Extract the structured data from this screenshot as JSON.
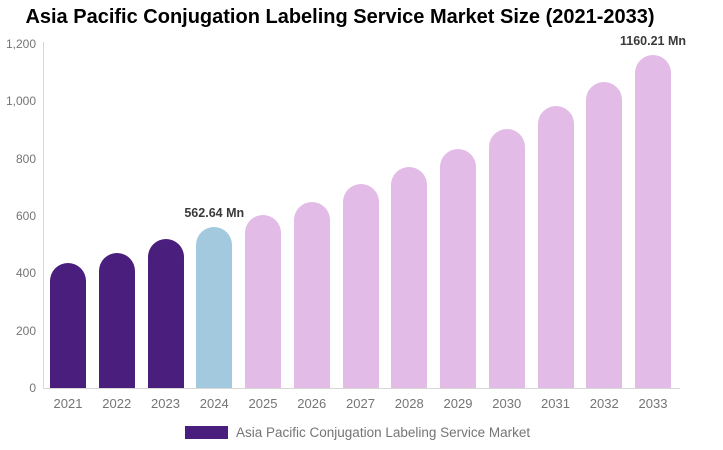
{
  "page": {
    "background": "#ffffff"
  },
  "chart_data": {
    "type": "bar",
    "title": "Asia Pacific Conjugation Labeling Service Market Size (2021-2033)",
    "xlabel": "",
    "ylabel": "",
    "ylim": [
      0,
      1200
    ],
    "grid": false,
    "legend_position": "bottom",
    "yticks": [
      0,
      200,
      400,
      600,
      800,
      1000,
      1200
    ],
    "ytick_labels": [
      "0",
      "200",
      "400",
      "600",
      "800",
      "1,000",
      "1,200"
    ],
    "categories": [
      "2021",
      "2022",
      "2023",
      "2024",
      "2025",
      "2026",
      "2027",
      "2028",
      "2029",
      "2030",
      "2031",
      "2032",
      "2033"
    ],
    "values": [
      435,
      472,
      520,
      562.64,
      602,
      648,
      712,
      770,
      835,
      905,
      985,
      1068,
      1160.21
    ],
    "bars": [
      {
        "year": "2021",
        "value": 435,
        "color": "#4A1E7C",
        "label": ""
      },
      {
        "year": "2022",
        "value": 472,
        "color": "#4A1E7C",
        "label": ""
      },
      {
        "year": "2023",
        "value": 520,
        "color": "#4A1E7C",
        "label": ""
      },
      {
        "year": "2024",
        "value": 562.64,
        "color": "#A3C9DF",
        "label": "562.64 Mn"
      },
      {
        "year": "2025",
        "value": 602,
        "color": "#E3BBE7",
        "label": ""
      },
      {
        "year": "2026",
        "value": 648,
        "color": "#E3BBE7",
        "label": ""
      },
      {
        "year": "2027",
        "value": 712,
        "color": "#E3BBE7",
        "label": ""
      },
      {
        "year": "2028",
        "value": 770,
        "color": "#E3BBE7",
        "label": ""
      },
      {
        "year": "2029",
        "value": 835,
        "color": "#E3BBE7",
        "label": ""
      },
      {
        "year": "2030",
        "value": 905,
        "color": "#E3BBE7",
        "label": ""
      },
      {
        "year": "2031",
        "value": 985,
        "color": "#E3BBE7",
        "label": ""
      },
      {
        "year": "2032",
        "value": 1068,
        "color": "#E3BBE7",
        "label": ""
      },
      {
        "year": "2033",
        "value": 1160.21,
        "color": "#E3BBE7",
        "label": "1160.21 Mn"
      }
    ],
    "colors": {
      "historical_bars": "#4A1E7C",
      "base_year_bar": "#A3C9DF",
      "forecast_bars": "#E3BBE7",
      "axis_line": "#D8D8D8",
      "tick_text": "#757575",
      "point_label_text": "#3A3A3A",
      "title_text": "#000000"
    },
    "legend": {
      "swatch_color": "#4A1E7C",
      "label": "Asia Pacific Conjugation Labeling Service Market"
    }
  }
}
